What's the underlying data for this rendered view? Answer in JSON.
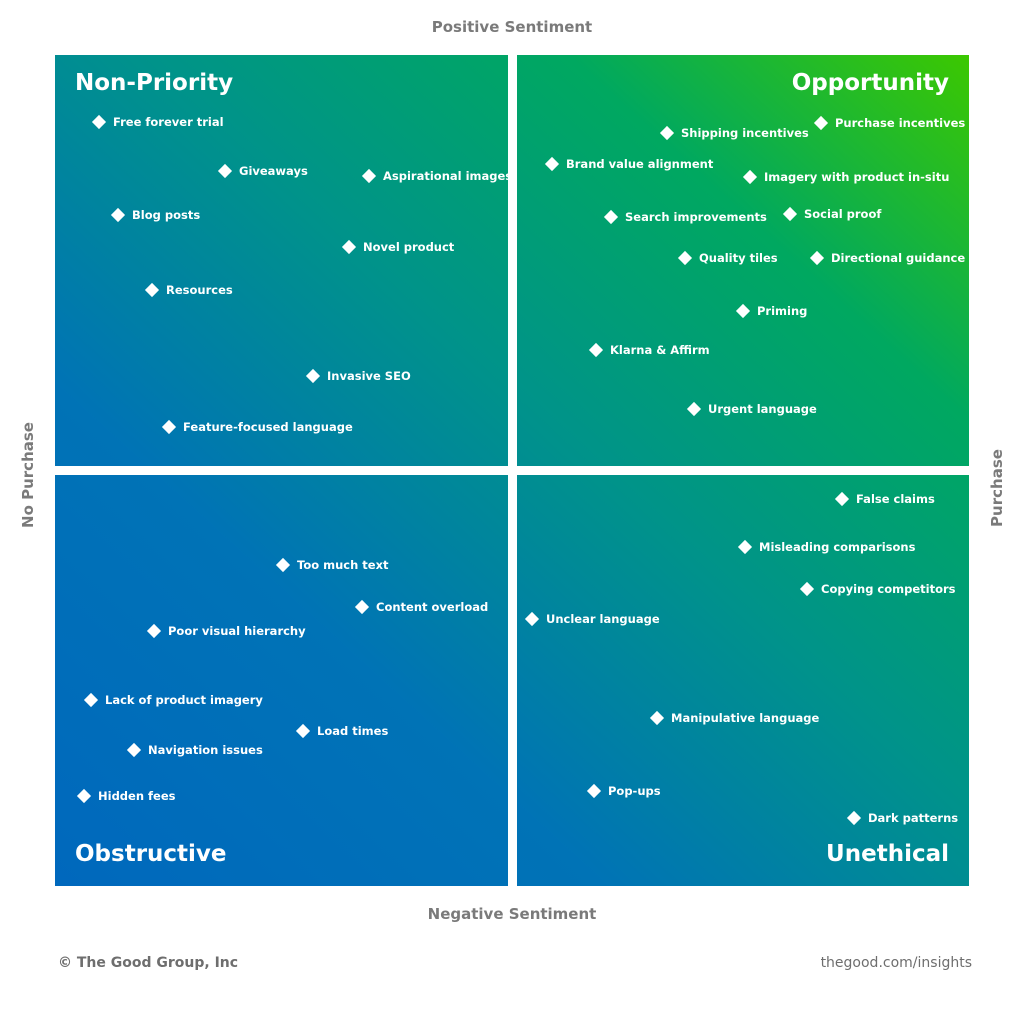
{
  "axes": {
    "top": "Positive Sentiment",
    "bottom": "Negative Sentiment",
    "left": "No Purchase",
    "right": "Purchase"
  },
  "colors": {
    "bottom_left": "#0068bd",
    "top_right": "#3cc800",
    "axis_text": "#7a7a7a"
  },
  "quadrants": {
    "top_left": {
      "title": "Non-Priority",
      "items": [
        "Free forever trial",
        "Giveaways",
        "Aspirational images",
        "Blog posts",
        "Novel product",
        "Resources",
        "Invasive SEO",
        "Feature-focused language"
      ]
    },
    "top_right": {
      "title": "Opportunity",
      "items": [
        "Shipping incentives",
        "Purchase incentives",
        "Brand value alignment",
        "Imagery with product in-situ",
        "Search improvements",
        "Social proof",
        "Quality tiles",
        "Directional guidance",
        "Priming",
        "Klarna & Affirm",
        "Urgent language"
      ]
    },
    "bottom_left": {
      "title": "Obstructive",
      "items": [
        "Too much text",
        "Content overload",
        "Poor visual hierarchy",
        "Lack of product imagery",
        "Load times",
        "Navigation issues",
        "Hidden fees"
      ]
    },
    "bottom_right": {
      "title": "Unethical",
      "items": [
        "False claims",
        "Misleading comparisons",
        "Copying competitors",
        "Unclear language",
        "Manipulative language",
        "Pop-ups",
        "Dark patterns"
      ]
    }
  },
  "footer": {
    "copyright": "© The Good Group, Inc",
    "url": "thegood.com/insights"
  }
}
